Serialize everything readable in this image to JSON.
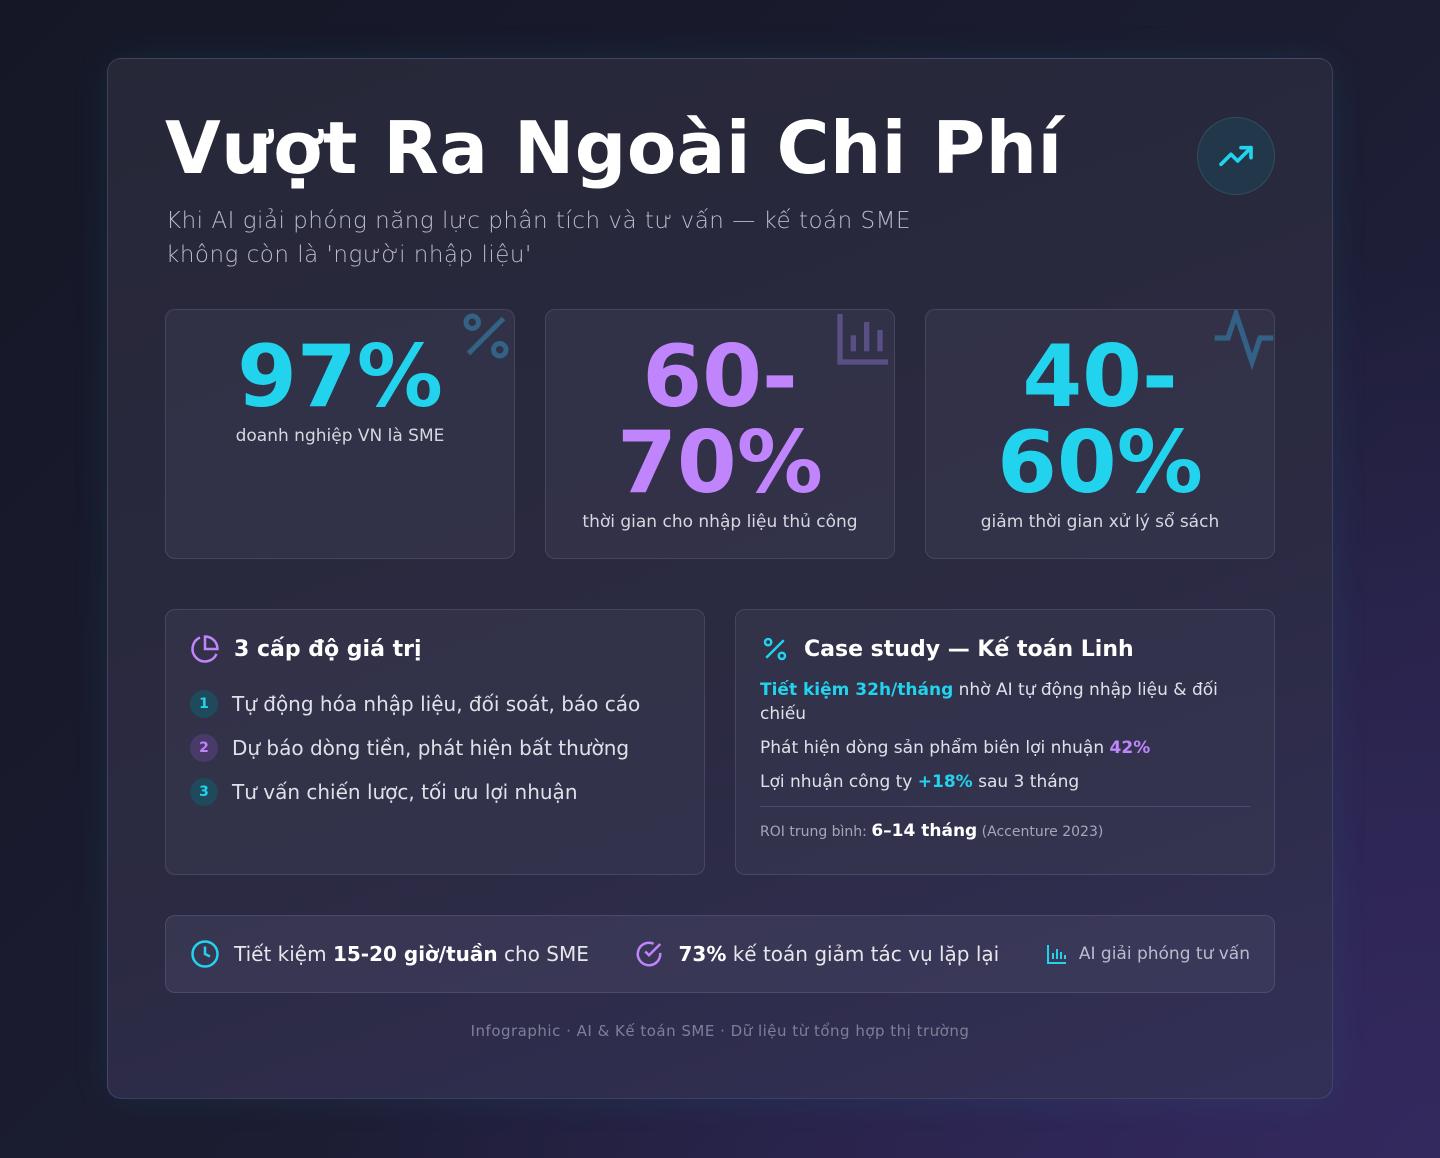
{
  "header": {
    "title": "Vượt Ra Ngoài Chi Phí",
    "subtitle": [
      "Khi AI giải phóng năng lực phân tích và tư vấn — kế toán SME",
      "không còn là 'người nhập liệu'"
    ]
  },
  "stats": [
    {
      "value": "97%",
      "label": "doanh nghiệp VN là SME"
    },
    {
      "value": "60-70%",
      "label": "thời gian cho nhập liệu thủ công"
    },
    {
      "value": "40-60%",
      "label": "giảm thời gian xử lý sổ sách"
    }
  ],
  "levels": {
    "title": "3 cấp độ giá trị",
    "items": [
      {
        "number": "1",
        "text": "Tự động hóa nhập liệu, đối soát, báo cáo"
      },
      {
        "number": "2",
        "text": "Dự báo dòng tiền, phát hiện bất thường"
      },
      {
        "number": "3",
        "text": "Tư vấn chiến lược, tối ưu lợi nhuận"
      }
    ]
  },
  "case_study": {
    "title": "Case study — Kế toán Linh",
    "lines": [
      [
        "Tiết kiệm 32h/tháng",
        " nhờ AI tự động nhập liệu & đối chiếu"
      ],
      [
        "Phát hiện dòng sản phẩm biên lợi nhuận ",
        "42%"
      ],
      [
        "Lợi nhuận công ty ",
        "+18%",
        " sau 3 tháng"
      ]
    ],
    "roi": [
      "ROI trung bình: ",
      "6–14 tháng",
      " (Accenture 2023)"
    ]
  },
  "highlights": [
    [
      "Tiết kiệm ",
      "15-20 giờ/tuần",
      " cho SME"
    ],
    [
      "73%",
      " kế toán giảm tác vụ lặp lại"
    ],
    [
      "AI giải phóng tư vấn"
    ]
  ],
  "footer": "Infographic · AI & Kế toán SME · Dữ liệu từ tổng hợp thị trường"
}
